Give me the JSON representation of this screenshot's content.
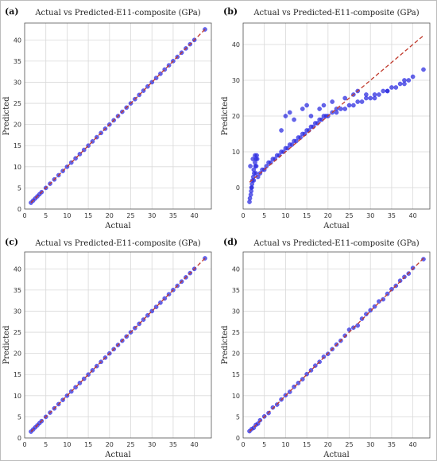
{
  "figure": {
    "panels": [
      {
        "id": "a",
        "label": "(a)",
        "title": "Actual vs Predicted-E11-composite (GPa)",
        "xlabel": "Actual",
        "ylabel": "Predicted"
      },
      {
        "id": "b",
        "label": "(b)",
        "title": "Actual vs Predicted-E11-composite (GPa)",
        "xlabel": "Actual",
        "ylabel": "Predicted"
      },
      {
        "id": "c",
        "label": "(c)",
        "title": "Actual vs Predicted-E11-composite (GPa)",
        "xlabel": "Actual",
        "ylabel": "Predicted"
      },
      {
        "id": "d",
        "label": "(d)",
        "title": "Actual vs Predicted-E11-composite (GPa)",
        "xlabel": "Actual",
        "ylabel": "Predicted"
      }
    ],
    "colors": {
      "points": "#2a2ad8",
      "reference_line": "#c0392b",
      "grid": "#d9d9d9"
    }
  },
  "chart_data": [
    {
      "type": "scatter",
      "panel": "a",
      "title": "Actual vs Predicted-E11-composite (GPa)",
      "xlabel": "Actual",
      "ylabel": "Predicted",
      "xlim": [
        0,
        44
      ],
      "ylim": [
        0,
        44
      ],
      "xticks": [
        0,
        5,
        10,
        15,
        20,
        25,
        30,
        35,
        40
      ],
      "yticks": [
        0,
        5,
        10,
        15,
        20,
        25,
        30,
        35,
        40
      ],
      "grid": true,
      "reference_line": "y=x",
      "x": [
        1.5,
        2,
        2.5,
        3,
        3.5,
        4,
        5,
        6,
        7,
        8,
        9,
        10,
        11,
        12,
        13,
        14,
        15,
        16,
        17,
        18,
        19,
        20,
        21,
        22,
        23,
        24,
        25,
        26,
        27,
        28,
        29,
        30,
        31,
        32,
        33,
        34,
        35,
        36,
        37,
        38,
        39,
        40,
        42.5
      ],
      "y": [
        1.5,
        2,
        2.5,
        3,
        3.5,
        4,
        5,
        6,
        7,
        8,
        9,
        10,
        11,
        12,
        13,
        14,
        15,
        16,
        17,
        18,
        19,
        20,
        21,
        22,
        23,
        24,
        25,
        26,
        27,
        28,
        29,
        30,
        31,
        32,
        33,
        34,
        35,
        36,
        37,
        38,
        39,
        40,
        42.5
      ]
    },
    {
      "type": "scatter",
      "panel": "b",
      "title": "Actual vs Predicted-E11-composite (GPa)",
      "xlabel": "Actual",
      "ylabel": "Predicted",
      "xlim": [
        0,
        44
      ],
      "ylim": [
        -6,
        46
      ],
      "xticks": [
        0,
        5,
        10,
        15,
        20,
        25,
        30,
        35,
        40
      ],
      "yticks": [
        0,
        10,
        20,
        30,
        40
      ],
      "grid": true,
      "reference_line": "y=x",
      "x": [
        1.5,
        1.8,
        2,
        2.2,
        2.5,
        2.8,
        3,
        3.2,
        1.6,
        2.1,
        2.6,
        3.1,
        1.9,
        2.4,
        2.9,
        3.3,
        2,
        2.5,
        3,
        1.7,
        2.3,
        2.8,
        3.5,
        4,
        4.5,
        5,
        5.5,
        6,
        6.5,
        7,
        7.5,
        8,
        8.5,
        9,
        9.5,
        10,
        10.5,
        11,
        11.5,
        12,
        12.5,
        13,
        13.5,
        14,
        14.5,
        15,
        15.5,
        16,
        16.5,
        17,
        17.5,
        18,
        18.5,
        19,
        19.5,
        20,
        21,
        22,
        23,
        24,
        25,
        26,
        27,
        28,
        29,
        30,
        31,
        32,
        33,
        34,
        35,
        36,
        37,
        38,
        39,
        40,
        42.5,
        9,
        10,
        11,
        12,
        14,
        15,
        16,
        18,
        19,
        21,
        22,
        24,
        26,
        27,
        29,
        31,
        34,
        38
      ],
      "y": [
        -4,
        -2,
        0,
        2,
        5,
        7,
        8,
        9,
        -3,
        1,
        4,
        6,
        -1,
        3,
        6,
        8,
        0,
        2,
        4,
        6,
        8,
        9,
        3,
        4,
        5,
        5,
        6,
        7,
        7,
        8,
        8,
        9,
        9,
        10,
        10,
        11,
        11,
        12,
        12,
        13,
        13,
        14,
        14,
        15,
        15,
        16,
        16,
        17,
        17,
        18,
        18,
        19,
        19,
        20,
        20,
        20,
        21,
        21,
        22,
        22,
        23,
        23,
        24,
        24,
        25,
        25,
        26,
        26,
        27,
        27,
        28,
        28,
        29,
        29,
        30,
        31,
        33,
        16,
        20,
        21,
        19,
        22,
        23,
        20,
        22,
        23,
        24,
        22,
        25,
        26,
        27,
        26,
        25,
        27,
        30
      ]
    },
    {
      "type": "scatter",
      "panel": "c",
      "title": "Actual vs Predicted-E11-composite (GPa)",
      "xlabel": "Actual",
      "ylabel": "Predicted",
      "xlim": [
        0,
        44
      ],
      "ylim": [
        0,
        44
      ],
      "xticks": [
        0,
        5,
        10,
        15,
        20,
        25,
        30,
        35,
        40
      ],
      "yticks": [
        0,
        5,
        10,
        15,
        20,
        25,
        30,
        35,
        40
      ],
      "grid": true,
      "reference_line": "y=x",
      "x": [
        1.5,
        2,
        2.5,
        3,
        3.5,
        4,
        5,
        6,
        7,
        8,
        9,
        10,
        11,
        12,
        13,
        14,
        15,
        16,
        17,
        18,
        19,
        20,
        21,
        22,
        23,
        24,
        25,
        26,
        27,
        28,
        29,
        30,
        31,
        32,
        33,
        34,
        35,
        36,
        37,
        38,
        39,
        40,
        42.5
      ],
      "y": [
        1.5,
        2,
        2.5,
        3,
        3.5,
        4,
        5,
        6,
        7,
        8,
        9,
        10,
        11,
        12,
        13,
        14,
        15,
        16,
        17,
        18,
        19,
        20,
        21,
        22,
        23,
        24,
        25,
        26,
        27,
        28,
        29,
        30,
        31,
        32,
        33,
        34,
        35,
        36,
        37,
        38,
        39,
        40,
        42.5
      ]
    },
    {
      "type": "scatter",
      "panel": "d",
      "title": "Actual vs Predicted-E11-composite (GPa)",
      "xlabel": "Actual",
      "ylabel": "Predicted",
      "xlim": [
        0,
        44
      ],
      "ylim": [
        0,
        44
      ],
      "xticks": [
        0,
        5,
        10,
        15,
        20,
        25,
        30,
        35,
        40
      ],
      "yticks": [
        0,
        5,
        10,
        15,
        20,
        25,
        30,
        35,
        40
      ],
      "grid": true,
      "reference_line": "y=x",
      "x": [
        1.5,
        2,
        2.5,
        3,
        3.5,
        4,
        5,
        6,
        7,
        8,
        9,
        10,
        11,
        12,
        13,
        14,
        15,
        16,
        17,
        18,
        19,
        20,
        21,
        22,
        23,
        24,
        25,
        26,
        27,
        28,
        29,
        30,
        31,
        32,
        33,
        34,
        35,
        36,
        37,
        38,
        39,
        40,
        42.5
      ],
      "y": [
        1.6,
        2.1,
        2.4,
        3.1,
        3.4,
        4.2,
        5.1,
        5.9,
        7.2,
        7.9,
        9.1,
        10.1,
        10.9,
        12.1,
        13,
        13.9,
        15.1,
        16,
        17.1,
        18,
        19.2,
        19.9,
        21,
        22.1,
        23,
        24.2,
        25.6,
        26.1,
        26.6,
        28.2,
        29.3,
        30.2,
        31.1,
        32.3,
        32.8,
        34.1,
        35.2,
        36,
        37.2,
        38.1,
        38.9,
        40.2,
        42.3
      ]
    }
  ]
}
